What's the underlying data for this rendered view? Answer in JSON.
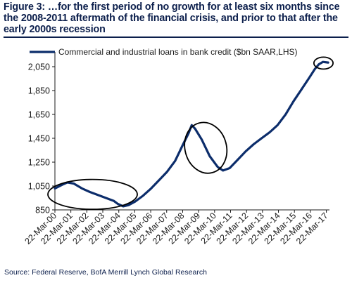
{
  "header": {
    "title": "Figure 3: …for the first period of no growth for at least six months since the 2008-2011 aftermath of the financial crisis, and prior to that after the early 2000s recession"
  },
  "footer": {
    "source": "Source: Federal Reserve, BofA Merrill Lynch Global Research"
  },
  "chart_data": {
    "type": "line",
    "title": "",
    "xlabel": "",
    "ylabel": "",
    "ylim": [
      850,
      2150
    ],
    "yticks": [
      850,
      1050,
      1250,
      1450,
      1650,
      1850,
      2050
    ],
    "ytick_labels": [
      "850",
      "1,050",
      "1,250",
      "1,450",
      "1,650",
      "1,850",
      "2,050"
    ],
    "xticks": [
      "22-Mar-00",
      "22-Mar-01",
      "22-Mar-02",
      "22-Mar-03",
      "22-Mar-04",
      "22-Mar-05",
      "22-Mar-06",
      "22-Mar-07",
      "22-Mar-08",
      "22-Mar-09",
      "22-Mar-10",
      "22-Mar-11",
      "22-Mar-12",
      "22-Mar-13",
      "22-Mar-14",
      "22-Mar-15",
      "22-Mar-16",
      "22-Mar-17"
    ],
    "xlim": [
      "2000-03-22",
      "2017-06-01"
    ],
    "grid": false,
    "legend": "top",
    "line_color": "#0c2d6b",
    "annotation_color": "#000000",
    "series": [
      {
        "name": "Commercial and industrial loans in bank credit ($bn SAAR,LHS)",
        "points": [
          [
            "2000-03-22",
            1030
          ],
          [
            "2000-09-01",
            1060
          ],
          [
            "2001-01-01",
            1080
          ],
          [
            "2001-06-01",
            1070
          ],
          [
            "2001-12-01",
            1030
          ],
          [
            "2002-06-01",
            1000
          ],
          [
            "2002-12-01",
            975
          ],
          [
            "2003-06-01",
            950
          ],
          [
            "2003-12-01",
            925
          ],
          [
            "2004-03-01",
            900
          ],
          [
            "2004-07-01",
            880
          ],
          [
            "2004-11-01",
            890
          ],
          [
            "2005-04-01",
            920
          ],
          [
            "2005-10-01",
            970
          ],
          [
            "2006-04-01",
            1030
          ],
          [
            "2006-10-01",
            1100
          ],
          [
            "2007-04-01",
            1170
          ],
          [
            "2007-10-01",
            1260
          ],
          [
            "2008-04-01",
            1400
          ],
          [
            "2008-08-01",
            1490
          ],
          [
            "2008-10-15",
            1560
          ],
          [
            "2009-01-01",
            1530
          ],
          [
            "2009-06-01",
            1440
          ],
          [
            "2009-12-01",
            1300
          ],
          [
            "2010-06-01",
            1210
          ],
          [
            "2010-10-01",
            1180
          ],
          [
            "2011-03-01",
            1200
          ],
          [
            "2011-09-01",
            1270
          ],
          [
            "2012-03-01",
            1340
          ],
          [
            "2012-09-01",
            1400
          ],
          [
            "2013-03-01",
            1450
          ],
          [
            "2013-09-01",
            1500
          ],
          [
            "2014-03-01",
            1560
          ],
          [
            "2014-09-01",
            1650
          ],
          [
            "2015-03-01",
            1760
          ],
          [
            "2015-09-01",
            1860
          ],
          [
            "2016-03-01",
            1960
          ],
          [
            "2016-07-01",
            2030
          ],
          [
            "2016-10-01",
            2070
          ],
          [
            "2017-01-01",
            2090
          ],
          [
            "2017-05-01",
            2085
          ]
        ]
      }
    ],
    "annotations": [
      {
        "shape": "ellipse",
        "center": [
          "2002-08-01",
          980
        ],
        "radius_years": 2.8,
        "radius_value": 125
      },
      {
        "shape": "ellipse",
        "center": [
          "2009-09-01",
          1370
        ],
        "radius_years": 1.3,
        "radius_value": 215
      },
      {
        "shape": "ellipse",
        "center": [
          "2017-01-15",
          2080
        ],
        "radius_years": 0.6,
        "radius_value": 50
      }
    ]
  }
}
